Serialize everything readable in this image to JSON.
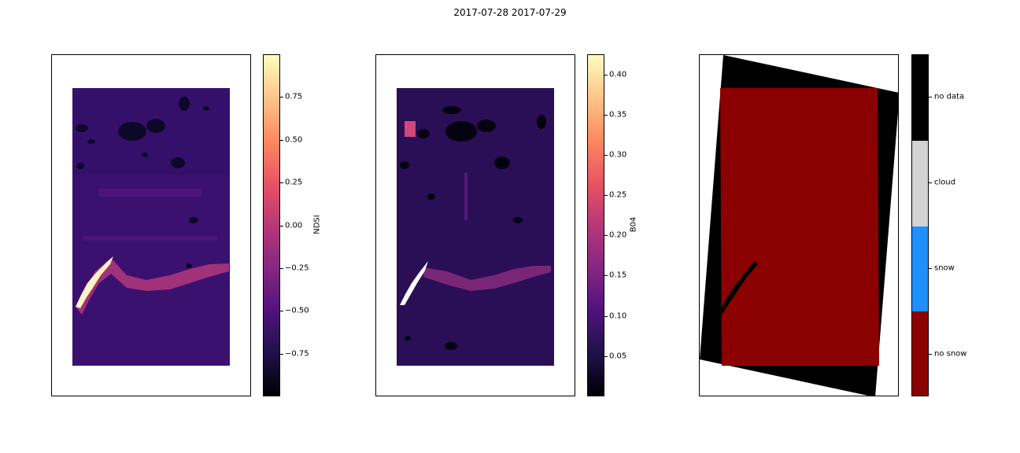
{
  "figure": {
    "title": "2017-07-28 2017-07-29"
  },
  "chart_data": [
    {
      "type": "heatmap",
      "title": "",
      "colorbar": {
        "label": "NDSI",
        "colormap": "magma",
        "range": [
          -1.0,
          1.0
        ],
        "ticks": [
          "0.75",
          "0.50",
          "0.25",
          "0.00",
          "−0.25",
          "−0.50",
          "−0.75"
        ],
        "tick_values": [
          0.75,
          0.5,
          0.25,
          0.0,
          -0.25,
          -0.5,
          -0.75
        ]
      },
      "dominant_value": -0.6,
      "colors": {
        "background": "#3a1068",
        "water": "#0c0826",
        "bright_feature": "#fdf3c4"
      }
    },
    {
      "type": "heatmap",
      "title": "",
      "colorbar": {
        "label": "B04",
        "colormap": "magma",
        "range": [
          0.0,
          0.425
        ],
        "ticks": [
          "0.40",
          "0.35",
          "0.30",
          "0.25",
          "0.20",
          "0.15",
          "0.10",
          "0.05"
        ],
        "tick_values": [
          0.4,
          0.35,
          0.3,
          0.25,
          0.2,
          0.15,
          0.1,
          0.05
        ]
      },
      "dominant_value": 0.08,
      "colors": {
        "background": "#2a0f57",
        "water": "#050310",
        "bright_feature": "#ffffff"
      }
    },
    {
      "type": "heatmap",
      "title": "",
      "colorbar": {
        "label": "",
        "categorical": true,
        "categories": [
          "no data",
          "cloud",
          "snow",
          "no snow"
        ],
        "colors": [
          "#000000",
          "#d3d3d3",
          "#1e90ff",
          "#8b0000"
        ]
      },
      "dominant_class": "no snow"
    }
  ]
}
